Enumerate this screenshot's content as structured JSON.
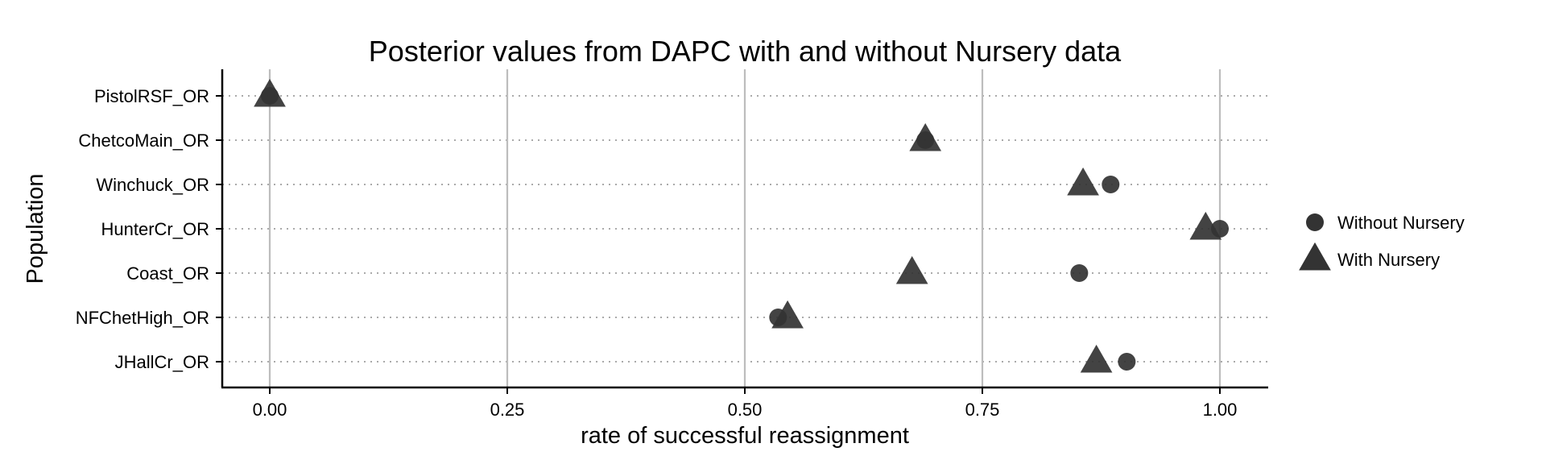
{
  "chart_data": {
    "type": "scatter",
    "title": "Posterior values from DAPC with and without Nursery data",
    "xlabel": "rate of successful reassignment",
    "ylabel": "Population",
    "xlim": [
      -0.05,
      1.05
    ],
    "xticks": [
      "0.00",
      "0.25",
      "0.50",
      "0.75",
      "1.00"
    ],
    "xtick_values": [
      0,
      0.25,
      0.5,
      0.75,
      1.0
    ],
    "categories": [
      "PistolRSF_OR",
      "ChetcoMain_OR",
      "Winchuck_OR",
      "HunterCr_OR",
      "Coast_OR",
      "NFChetHigh_OR",
      "JHallCr_OR"
    ],
    "series": [
      {
        "name": "Without Nursery",
        "marker": "circle",
        "values": [
          0.0,
          0.69,
          0.885,
          1.0,
          0.852,
          0.535,
          0.902
        ]
      },
      {
        "name": "With Nursery",
        "marker": "triangle",
        "values": [
          0.0,
          0.69,
          0.856,
          0.985,
          0.676,
          0.545,
          0.87
        ]
      }
    ],
    "grid": {
      "vertical_major": true,
      "horizontal_dotted": true
    },
    "legend_position": "right",
    "colors": {
      "marker": "#333333",
      "grid_major": "#bdbdbd",
      "grid_dotted": "#aaaaaa",
      "axis": "#000000"
    }
  }
}
